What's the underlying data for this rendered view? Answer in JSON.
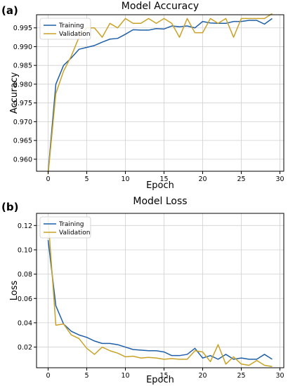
{
  "panels": [
    {
      "label": "(a)"
    },
    {
      "label": "(b)"
    }
  ],
  "colors": {
    "training": "#1f5fa8",
    "validation": "#c9a227",
    "grid": "#d0d0d0"
  },
  "chart_data": [
    {
      "type": "line",
      "title": "Model Accuracy",
      "xlabel": "Epoch",
      "ylabel": "Accuracy",
      "xlim": [
        -1.5,
        30.5
      ],
      "ylim": [
        0.9568,
        0.9985
      ],
      "xticks": [
        0,
        5,
        10,
        15,
        20,
        25,
        30
      ],
      "yticks": [
        0.96,
        0.965,
        0.97,
        0.975,
        0.98,
        0.985,
        0.99,
        0.995
      ],
      "ytick_labels": [
        "0.960",
        "0.965",
        "0.970",
        "0.975",
        "0.980",
        "0.985",
        "0.990",
        "0.995"
      ],
      "grid": true,
      "legend_position": "top-left",
      "x": [
        0,
        1,
        2,
        3,
        4,
        5,
        6,
        7,
        8,
        9,
        10,
        11,
        12,
        13,
        14,
        15,
        16,
        17,
        18,
        19,
        20,
        21,
        22,
        23,
        24,
        25,
        26,
        27,
        28,
        29
      ],
      "series": [
        {
          "name": "Training",
          "color": "#1f5fa8",
          "values": [
            0.9565,
            0.98,
            0.985,
            0.987,
            0.9893,
            0.9898,
            0.9903,
            0.9912,
            0.992,
            0.9922,
            0.9933,
            0.9945,
            0.9944,
            0.9944,
            0.9948,
            0.9947,
            0.9955,
            0.9953,
            0.9955,
            0.995,
            0.9967,
            0.9963,
            0.9962,
            0.9962,
            0.9967,
            0.9967,
            0.997,
            0.997,
            0.996,
            0.9975
          ]
        },
        {
          "name": "Validation",
          "color": "#c9a227",
          "values": [
            0.956,
            0.9775,
            0.9835,
            0.9875,
            0.9925,
            0.995,
            0.995,
            0.9925,
            0.9962,
            0.995,
            0.9975,
            0.9962,
            0.9962,
            0.9975,
            0.9962,
            0.9975,
            0.9962,
            0.9925,
            0.9975,
            0.9937,
            0.9937,
            0.9975,
            0.9962,
            0.9975,
            0.9925,
            0.9975,
            0.9975,
            0.9975,
            0.9975,
            0.9988
          ]
        }
      ]
    },
    {
      "type": "line",
      "title": "Model Loss",
      "xlabel": "Epoch",
      "ylabel": "Loss",
      "xlim": [
        -1.5,
        30.5
      ],
      "ylim": [
        0.003,
        0.13
      ],
      "xticks": [
        0,
        5,
        10,
        15,
        20,
        25,
        30
      ],
      "yticks": [
        0.02,
        0.04,
        0.06,
        0.08,
        0.1,
        0.12
      ],
      "ytick_labels": [
        "0.02",
        "0.04",
        "0.06",
        "0.08",
        "0.10",
        "0.12"
      ],
      "grid": true,
      "legend_position": "top-left",
      "x": [
        0,
        1,
        2,
        3,
        4,
        5,
        6,
        7,
        8,
        9,
        10,
        11,
        12,
        13,
        14,
        15,
        16,
        17,
        18,
        19,
        20,
        21,
        22,
        23,
        24,
        25,
        26,
        27,
        28,
        29
      ],
      "series": [
        {
          "name": "Training",
          "color": "#1f5fa8",
          "values": [
            0.108,
            0.054,
            0.039,
            0.033,
            0.03,
            0.028,
            0.025,
            0.023,
            0.023,
            0.022,
            0.02,
            0.018,
            0.0175,
            0.017,
            0.017,
            0.016,
            0.013,
            0.013,
            0.014,
            0.019,
            0.011,
            0.013,
            0.01,
            0.014,
            0.01,
            0.011,
            0.01,
            0.01,
            0.014,
            0.01
          ]
        },
        {
          "name": "Validation",
          "color": "#c9a227",
          "values": [
            0.126,
            0.038,
            0.039,
            0.03,
            0.027,
            0.019,
            0.014,
            0.02,
            0.017,
            0.015,
            0.012,
            0.0125,
            0.011,
            0.0115,
            0.011,
            0.01,
            0.0105,
            0.01,
            0.01,
            0.017,
            0.016,
            0.008,
            0.022,
            0.006,
            0.012,
            0.006,
            0.005,
            0.009,
            0.005,
            0.004
          ]
        }
      ]
    }
  ]
}
